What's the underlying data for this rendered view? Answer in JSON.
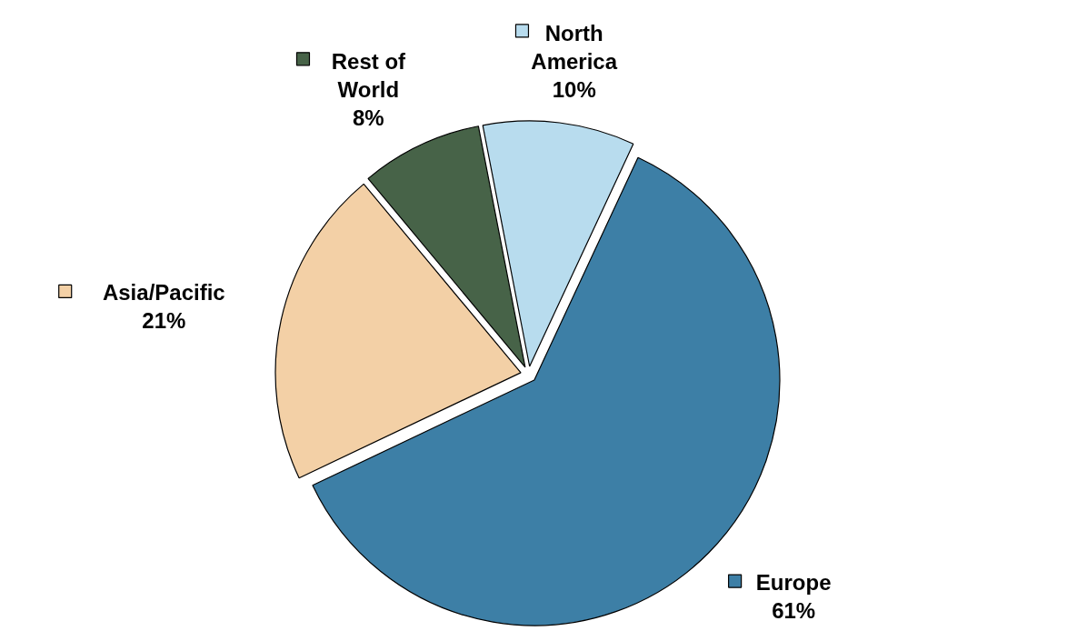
{
  "chart_data": {
    "type": "pie",
    "categories": [
      "Europe",
      "Asia/Pacific",
      "Rest of World",
      "North America"
    ],
    "values": [
      61,
      21,
      8,
      10
    ],
    "value_labels": [
      "61%",
      "21%",
      "8%",
      "10%"
    ],
    "colors": [
      "#3d7fa6",
      "#f3d0a6",
      "#476348",
      "#b8dcee"
    ],
    "legend": "top"
  }
}
